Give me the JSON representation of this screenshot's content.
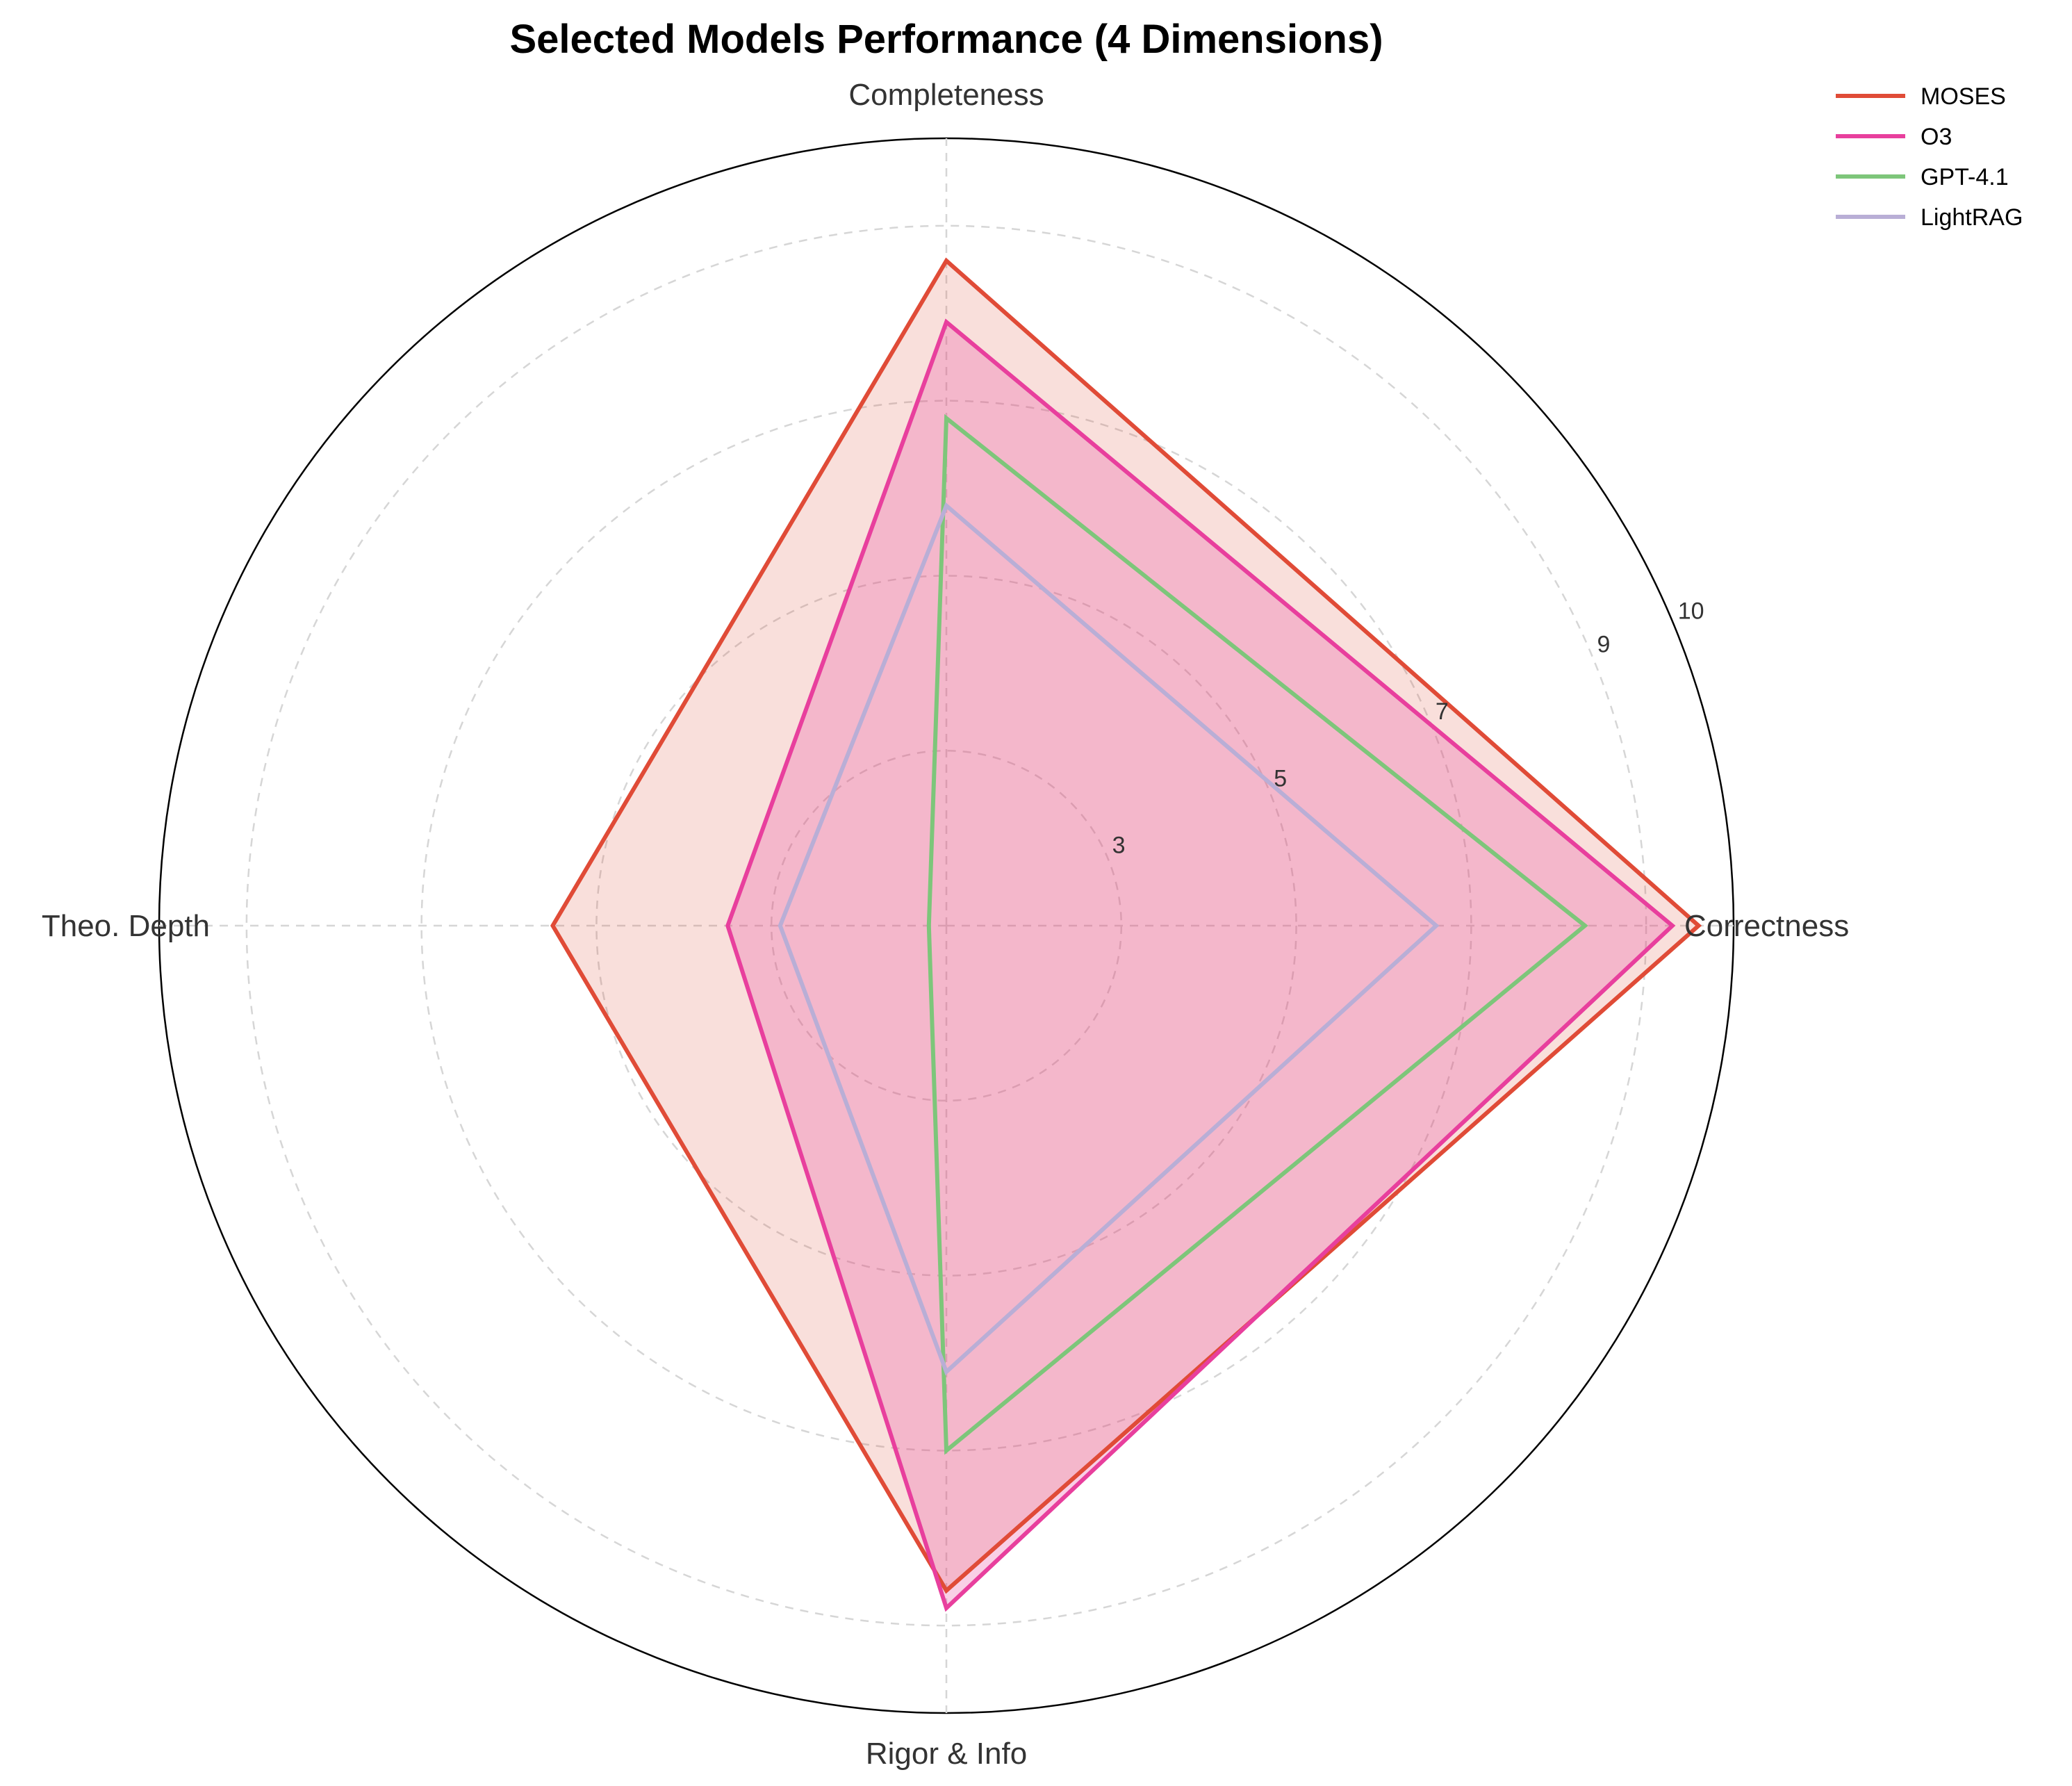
{
  "chart_data": {
    "type": "radar",
    "title": "Selected Models Performance (4 Dimensions)",
    "axes": [
      "Correctness",
      "Completeness",
      "Theo. Depth",
      "Rigor & Info"
    ],
    "rlim": [
      1,
      10
    ],
    "rticks": [
      3,
      5,
      7,
      9,
      10
    ],
    "rtick_labels": [
      "3",
      "5",
      "7",
      "9",
      "10"
    ],
    "grid": true,
    "legend_position": "top-right",
    "series": [
      {
        "name": "MOSES",
        "values": [
          9.6,
          8.6,
          5.5,
          8.6
        ],
        "color": "#e04b37",
        "fill": true,
        "fill_opacity": 0.18
      },
      {
        "name": "O3",
        "values": [
          9.3,
          7.9,
          3.5,
          8.8
        ],
        "color": "#e83f9d",
        "fill": true,
        "fill_opacity": 0.25
      },
      {
        "name": "GPT-4.1",
        "values": [
          8.3,
          6.8,
          1.2,
          7.0
        ],
        "color": "#7dc67a",
        "fill": false,
        "fill_opacity": 0
      },
      {
        "name": "LightRAG",
        "values": [
          6.6,
          5.8,
          2.9,
          6.1
        ],
        "color": "#b9aed6",
        "fill": false,
        "fill_opacity": 0
      }
    ]
  }
}
